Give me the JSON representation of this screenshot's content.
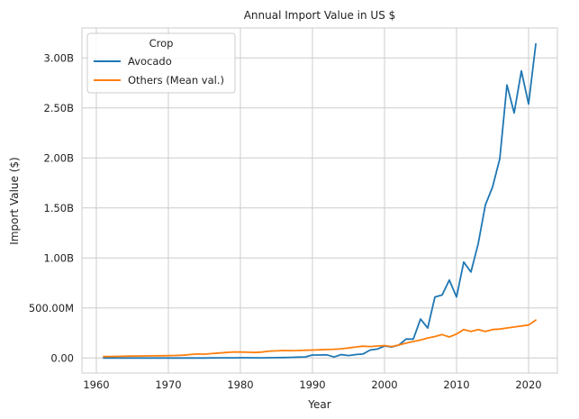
{
  "chart_data": {
    "type": "line",
    "title": "Annual Import Value in US $",
    "xlabel": "Year",
    "ylabel": "Import Value ($)",
    "xlim": [
      1958.0,
      2024.0
    ],
    "ylim": [
      -150000000,
      3300000000
    ],
    "xticks": [
      1960,
      1970,
      1980,
      1990,
      2000,
      2010,
      2020
    ],
    "xtick_labels": [
      "1960",
      "1970",
      "1980",
      "1990",
      "2000",
      "2010",
      "2020"
    ],
    "yticks": [
      0,
      500000000,
      1000000000,
      1500000000,
      2000000000,
      2500000000,
      3000000000
    ],
    "ytick_labels": [
      "0.00",
      "500.00M",
      "1.00B",
      "1.50B",
      "2.00B",
      "2.50B",
      "3.00B"
    ],
    "grid": true,
    "legend": {
      "title": "Crop",
      "placement": "top-left"
    },
    "series": [
      {
        "name": "Avocado",
        "color": "#1f77b4",
        "x": [
          1961,
          1962,
          1963,
          1964,
          1965,
          1966,
          1967,
          1968,
          1969,
          1970,
          1971,
          1972,
          1973,
          1974,
          1975,
          1976,
          1977,
          1978,
          1979,
          1980,
          1981,
          1982,
          1983,
          1984,
          1985,
          1986,
          1987,
          1988,
          1989,
          1990,
          1991,
          1992,
          1993,
          1994,
          1995,
          1996,
          1997,
          1998,
          1999,
          2000,
          2001,
          2002,
          2003,
          2004,
          2005,
          2006,
          2007,
          2008,
          2009,
          2010,
          2011,
          2012,
          2013,
          2014,
          2015,
          2016,
          2017,
          2018,
          2019,
          2020,
          2021
        ],
        "y": [
          0,
          0,
          0,
          0,
          0,
          0,
          0,
          0,
          0,
          0,
          0,
          0,
          0,
          0,
          0,
          1000000,
          2000000,
          2000000,
          2000000,
          3000000,
          3000000,
          2000000,
          2000000,
          3000000,
          4000000,
          5000000,
          7000000,
          9000000,
          11000000,
          30000000,
          30000000,
          32000000,
          10000000,
          35000000,
          25000000,
          35000000,
          40000000,
          80000000,
          90000000,
          120000000,
          110000000,
          130000000,
          190000000,
          190000000,
          390000000,
          300000000,
          610000000,
          630000000,
          780000000,
          610000000,
          960000000,
          860000000,
          1140000000,
          1530000000,
          1710000000,
          1990000000,
          2730000000,
          2450000000,
          2870000000,
          2540000000,
          3140000000
        ]
      },
      {
        "name": "Others (Mean val.)",
        "color": "#ff7f0e",
        "x": [
          1961,
          1962,
          1963,
          1964,
          1965,
          1966,
          1967,
          1968,
          1969,
          1970,
          1971,
          1972,
          1973,
          1974,
          1975,
          1976,
          1977,
          1978,
          1979,
          1980,
          1981,
          1982,
          1983,
          1984,
          1985,
          1986,
          1987,
          1988,
          1989,
          1990,
          1991,
          1992,
          1993,
          1994,
          1995,
          1996,
          1997,
          1998,
          1999,
          2000,
          2001,
          2002,
          2003,
          2004,
          2005,
          2006,
          2007,
          2008,
          2009,
          2010,
          2011,
          2012,
          2013,
          2014,
          2015,
          2016,
          2017,
          2018,
          2019,
          2020,
          2021
        ],
        "y": [
          15000000,
          16000000,
          17000000,
          18000000,
          19000000,
          20000000,
          21000000,
          22000000,
          23000000,
          24000000,
          26000000,
          28000000,
          35000000,
          40000000,
          38000000,
          45000000,
          50000000,
          55000000,
          60000000,
          60000000,
          58000000,
          55000000,
          60000000,
          70000000,
          72000000,
          75000000,
          74000000,
          75000000,
          78000000,
          80000000,
          82000000,
          85000000,
          88000000,
          92000000,
          100000000,
          110000000,
          118000000,
          115000000,
          120000000,
          125000000,
          115000000,
          130000000,
          150000000,
          165000000,
          180000000,
          200000000,
          215000000,
          235000000,
          210000000,
          240000000,
          285000000,
          265000000,
          285000000,
          265000000,
          285000000,
          290000000,
          300000000,
          310000000,
          320000000,
          330000000,
          380000000
        ]
      }
    ]
  }
}
